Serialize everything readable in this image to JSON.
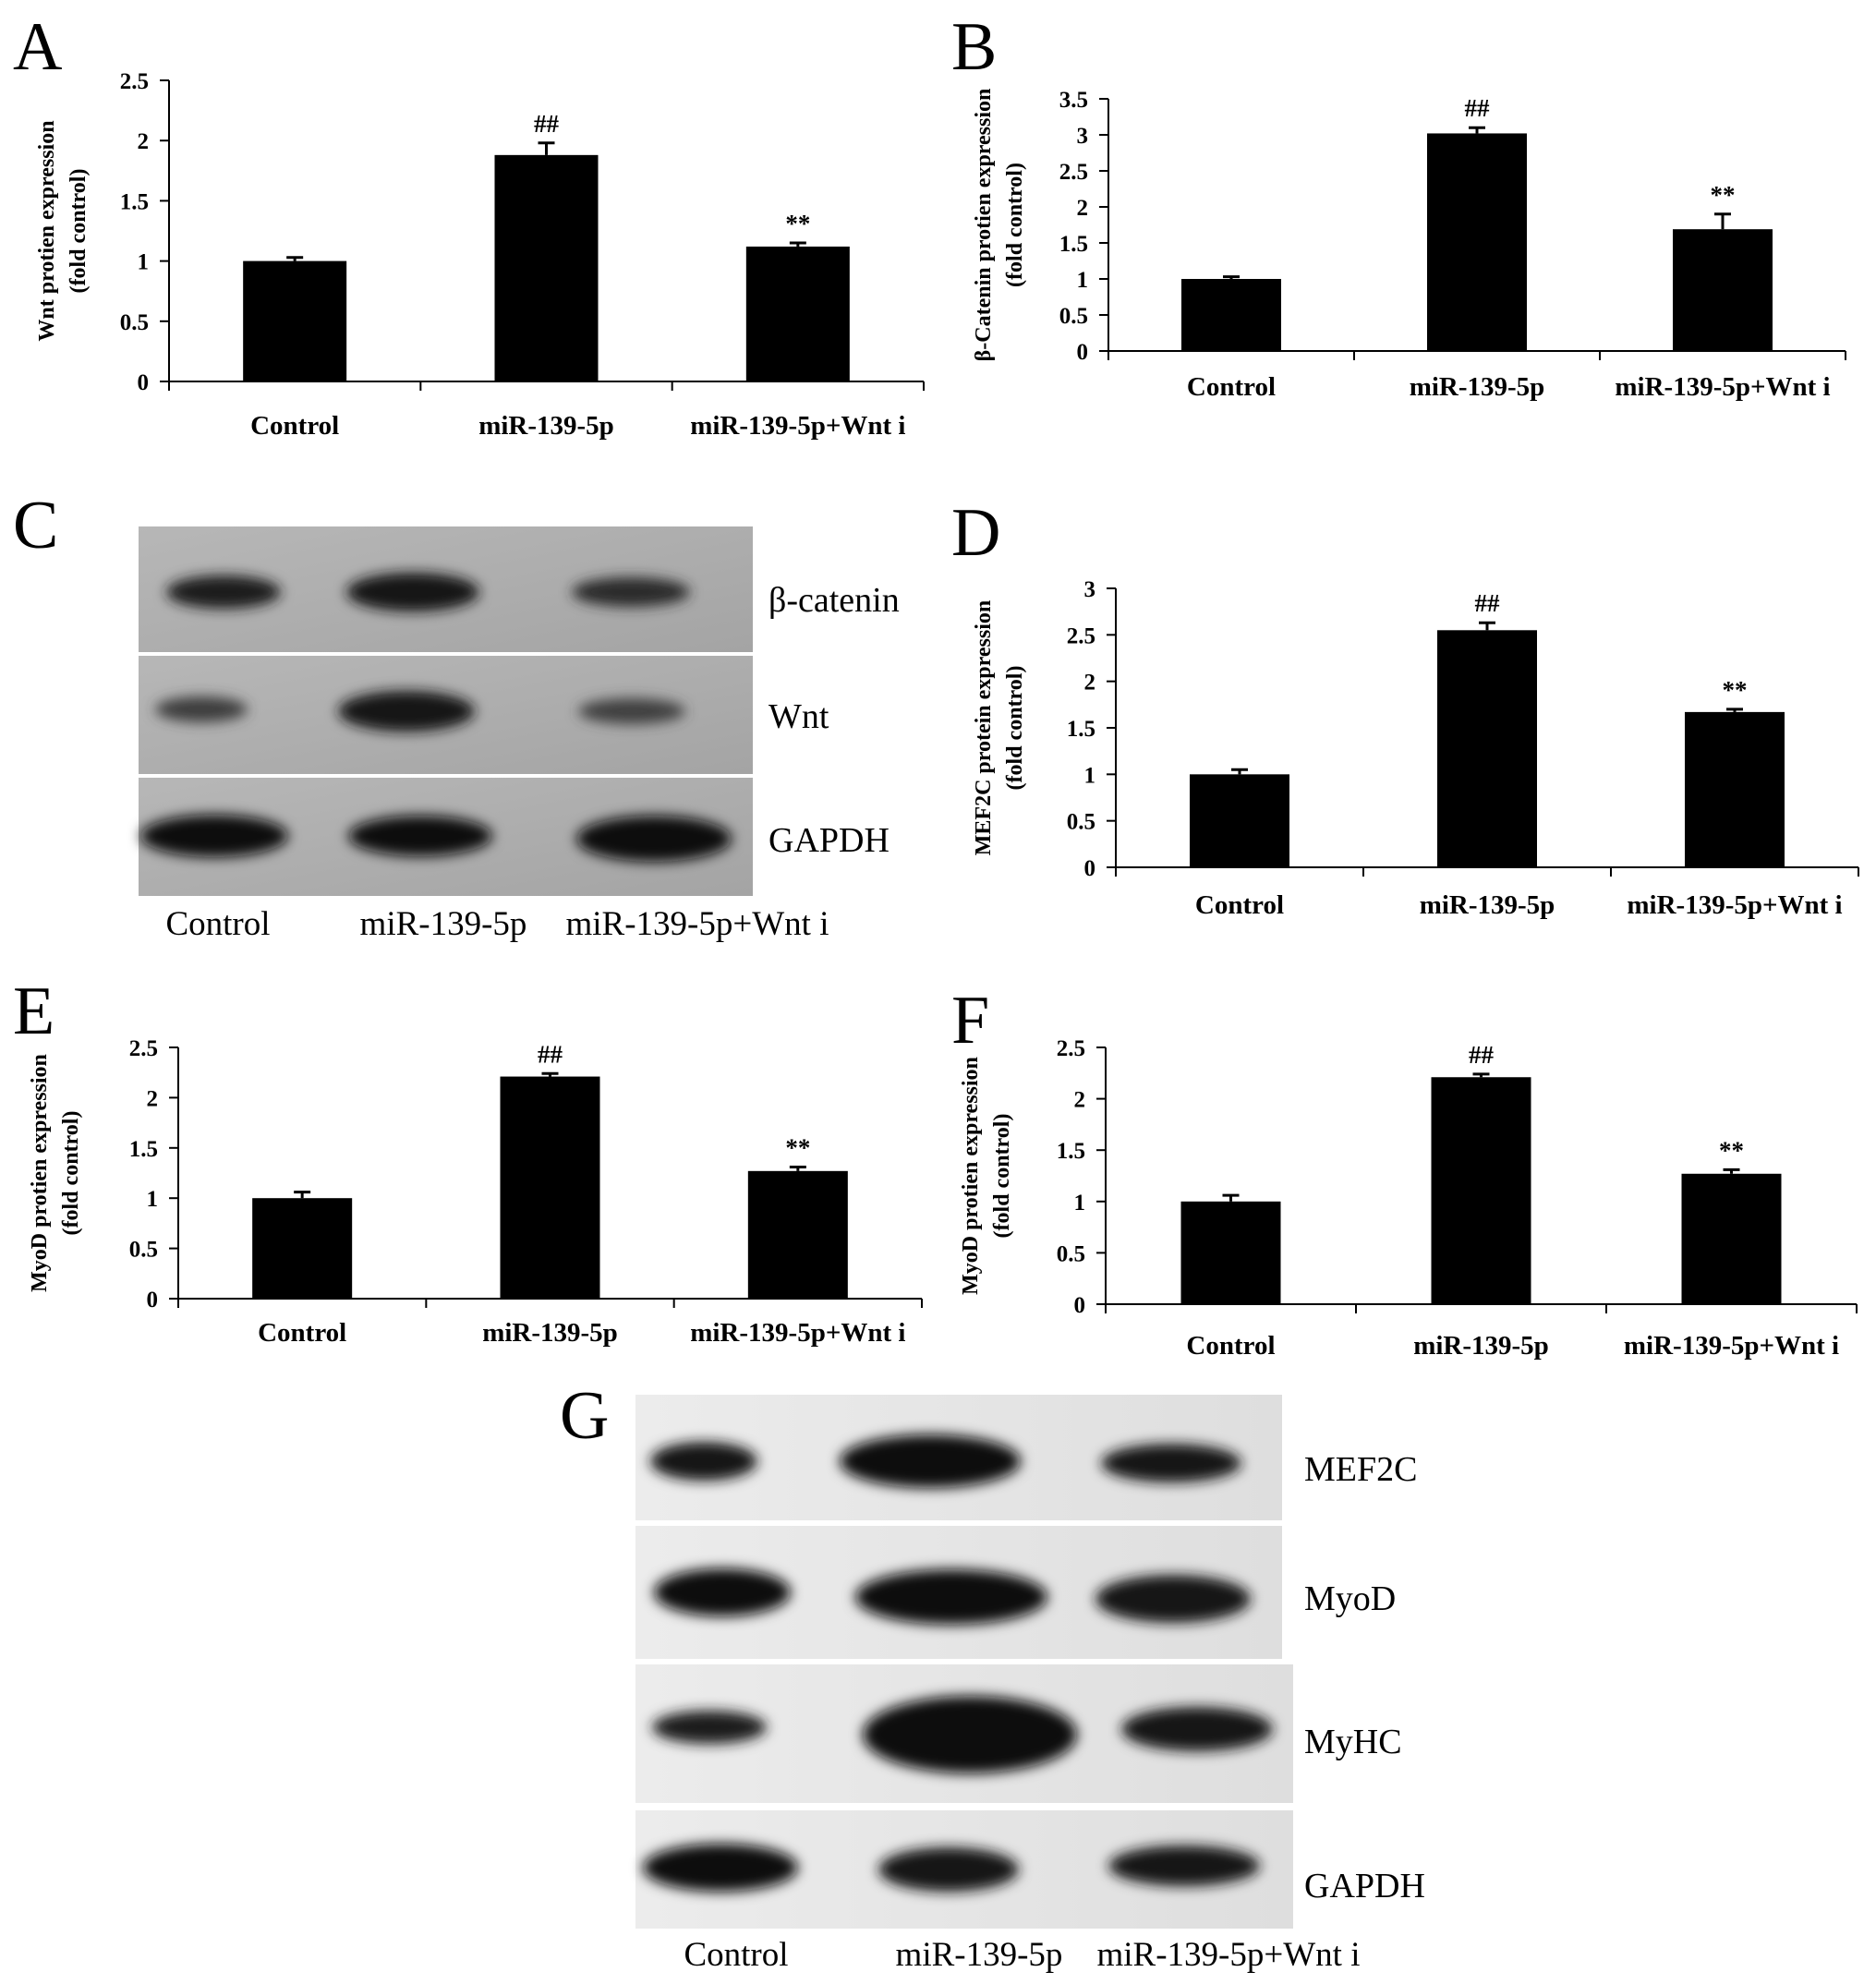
{
  "figure": {
    "blot_c": {
      "letter": "C",
      "proteins": [
        "β-catenin",
        "Wnt",
        "GAPDH"
      ],
      "lanes": [
        "Control",
        "miR-139-5p",
        "miR-139-5p+Wnt i"
      ]
    },
    "blot_g": {
      "letter": "G",
      "proteins": [
        "MEF2C",
        "MyoD",
        "MyHC",
        "GAPDH"
      ],
      "lanes": [
        "Control",
        "miR-139-5p",
        "miR-139-5p+Wnt i"
      ]
    }
  },
  "chart_data": [
    {
      "panel": "A",
      "type": "bar",
      "categories": [
        "Control",
        "miR-139-5p",
        "miR-139-5p+Wnt i"
      ],
      "values": [
        1.0,
        1.88,
        1.12
      ],
      "errors": [
        0.03,
        0.1,
        0.03
      ],
      "significance": [
        "",
        "##",
        "**"
      ],
      "ylabel": [
        "Wnt protien expression",
        "(fold control)"
      ],
      "ylim": [
        0,
        2.5
      ],
      "yticks": [
        "0",
        "0.5",
        "1",
        "1.5",
        "2",
        "2.5"
      ],
      "color": "#000000"
    },
    {
      "panel": "B",
      "type": "bar",
      "categories": [
        "Control",
        "miR-139-5p",
        "miR-139-5p+Wnt i"
      ],
      "values": [
        1.0,
        3.02,
        1.69
      ],
      "errors": [
        0.03,
        0.08,
        0.21
      ],
      "significance": [
        "",
        "##",
        "**"
      ],
      "ylabel": [
        "β-Catenin protien expression",
        "(fold control)"
      ],
      "ylim": [
        0,
        3.5
      ],
      "yticks": [
        "0",
        "0.5",
        "1",
        "1.5",
        "2",
        "2.5",
        "3",
        "3.5"
      ],
      "color": "#000000"
    },
    {
      "panel": "D",
      "type": "bar",
      "categories": [
        "Control",
        "miR-139-5p",
        "miR-139-5p+Wnt i"
      ],
      "values": [
        1.0,
        2.55,
        1.67
      ],
      "errors": [
        0.05,
        0.08,
        0.03
      ],
      "significance": [
        "",
        "##",
        "**"
      ],
      "ylabel": [
        "MEF2C protein expression",
        "(fold control)"
      ],
      "ylim": [
        0,
        3
      ],
      "yticks": [
        "0",
        "0.5",
        "1",
        "1.5",
        "2",
        "2.5",
        "3"
      ],
      "color": "#000000"
    },
    {
      "panel": "E",
      "type": "bar",
      "categories": [
        "Control",
        "miR-139-5p",
        "miR-139-5p+Wnt i"
      ],
      "values": [
        1.0,
        2.21,
        1.27
      ],
      "errors": [
        0.06,
        0.03,
        0.04
      ],
      "significance": [
        "",
        "##",
        "**"
      ],
      "ylabel": [
        "MyoD protien expression",
        "(fold control)"
      ],
      "ylim": [
        0,
        2.5
      ],
      "yticks": [
        "0",
        "0.5",
        "1",
        "1.5",
        "2",
        "2.5"
      ],
      "color": "#000000"
    },
    {
      "panel": "F",
      "type": "bar",
      "categories": [
        "Control",
        "miR-139-5p",
        "miR-139-5p+Wnt i"
      ],
      "values": [
        1.0,
        2.21,
        1.27
      ],
      "errors": [
        0.06,
        0.03,
        0.04
      ],
      "significance": [
        "",
        "##",
        "**"
      ],
      "ylabel": [
        "MyoD protien expression",
        "(fold control)"
      ],
      "ylim": [
        0,
        2.5
      ],
      "yticks": [
        "0",
        "0.5",
        "1",
        "1.5",
        "2",
        "2.5"
      ],
      "color": "#000000"
    }
  ]
}
